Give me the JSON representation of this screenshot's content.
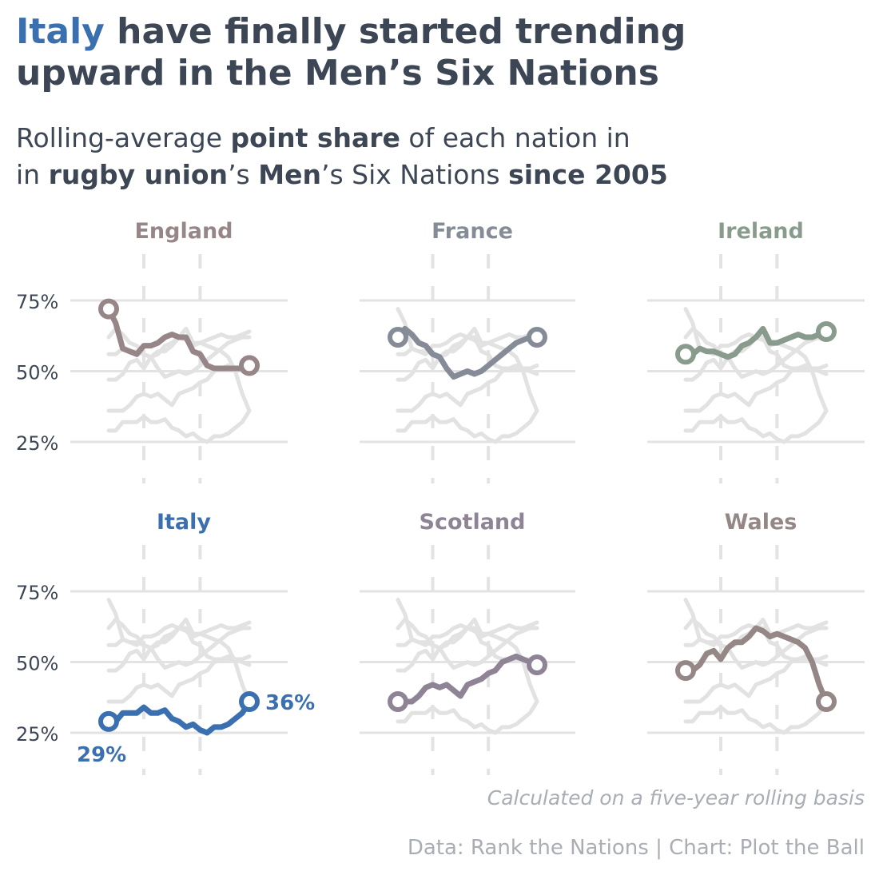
{
  "title": {
    "highlight": "Italy",
    "rest_line1": " have finally started trending",
    "line2": "upward in the Men’s Six Nations"
  },
  "subtitle": {
    "p1": "Rolling-average ",
    "b1": "point share",
    "p2": " of each nation in",
    "p3": "in ",
    "b2": "rugby union",
    "p4": "’s ",
    "b3": "Men",
    "p5": "’s Six Nations ",
    "b4": "since 2005"
  },
  "note": "Calculated on a five-year rolling basis",
  "credit": "Data: Rank the Nations | Chart: Plot the Ball",
  "chart_data": {
    "type": "line",
    "layout": "small-multiples",
    "title": "Rolling-average point share of each nation in rugby union’s Men’s Six Nations since 2005",
    "ylim": [
      18,
      88
    ],
    "y_ticks": [
      25,
      50,
      75
    ],
    "y_tick_labels": [
      "25%",
      "50%",
      "75%"
    ],
    "x": [
      0,
      1,
      2,
      3,
      4,
      5,
      6,
      7,
      8,
      9,
      10,
      11,
      12,
      13,
      14,
      15,
      16,
      17,
      18,
      19,
      20
    ],
    "xlim": [
      -1,
      23
    ],
    "x_gridlines": [
      5,
      13
    ],
    "series": [
      {
        "name": "England",
        "color": "#978688",
        "values": [
          72,
          67,
          58,
          57,
          56,
          59,
          59,
          60,
          62,
          63,
          62,
          62,
          57,
          56,
          52,
          51,
          51,
          51,
          51,
          51,
          52
        ]
      },
      {
        "name": "France",
        "color": "#858c98",
        "values": [
          62,
          65,
          63,
          60,
          59,
          56,
          55,
          51,
          48,
          49,
          50,
          49,
          50,
          52,
          54,
          56,
          58,
          60,
          61,
          62,
          62
        ]
      },
      {
        "name": "Ireland",
        "color": "#889b8c",
        "values": [
          56,
          56,
          58,
          57,
          57,
          56,
          55,
          56,
          59,
          60,
          62,
          65,
          60,
          60,
          61,
          62,
          63,
          62,
          62,
          63,
          64
        ]
      },
      {
        "name": "Italy",
        "color": "#3b70b0",
        "values": [
          29,
          29,
          32,
          32,
          32,
          34,
          32,
          32,
          33,
          30,
          29,
          27,
          28,
          26,
          25,
          27,
          27,
          28,
          30,
          32,
          36
        ],
        "start_label": "29%",
        "end_label": "36%"
      },
      {
        "name": "Scotland",
        "color": "#8f8496",
        "values": [
          36,
          36,
          36,
          38,
          41,
          42,
          41,
          42,
          40,
          38,
          42,
          43,
          44,
          46,
          47,
          50,
          51,
          52,
          51,
          50,
          49
        ]
      },
      {
        "name": "Wales",
        "color": "#968787",
        "values": [
          47,
          47,
          49,
          53,
          54,
          51,
          55,
          57,
          57,
          59,
          62,
          61,
          59,
          60,
          59,
          58,
          57,
          55,
          50,
          42,
          36
        ]
      }
    ]
  }
}
